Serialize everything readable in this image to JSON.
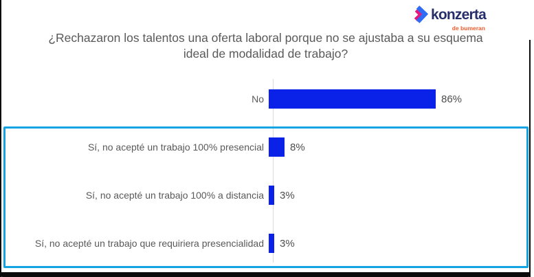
{
  "logo": {
    "brand": "konzerta",
    "sub_brand": "de bumeran",
    "brand_color": "#272F6B",
    "sub_color": "#EF5B2D",
    "mark_blue": "#2F6CF6",
    "mark_magenta": "#E5187D"
  },
  "title": {
    "full": "¿Rechazaron los talentos una oferta laboral porque no se ajustaba a su esquema ideal de modalidad de trabajo?",
    "line1": "¿Rechazaron los talentos una oferta laboral porque no se ajustaba a su esquema",
    "line2": "ideal de modalidad de trabajo?"
  },
  "chart_data": {
    "type": "bar",
    "orientation": "horizontal",
    "title": "¿Rechazaron los talentos una oferta laboral porque no se ajustaba a su esquema ideal de modalidad de trabajo?",
    "categories": [
      "No",
      "Sí, no acepté un trabajo 100% presencial",
      "Sí, no acepté un trabajo 100% a distancia",
      "Sí, no acepté un trabajo que requiriera presencialidad"
    ],
    "values": [
      86,
      8,
      3,
      3
    ],
    "value_labels": [
      "86%",
      "8%",
      "3%",
      "3%"
    ],
    "xlabel": "",
    "ylabel": "",
    "xlim": [
      0,
      100
    ],
    "grid": false,
    "legend": false,
    "bar_color": "#0A22E8",
    "axis_line_color": "#D9D9D9",
    "label_color": "#595959",
    "highlight": {
      "rows": [
        1,
        2,
        3
      ],
      "border_color": "#12A3E3",
      "note": "cyan box drawn around the three 'Sí' answer rows"
    }
  }
}
